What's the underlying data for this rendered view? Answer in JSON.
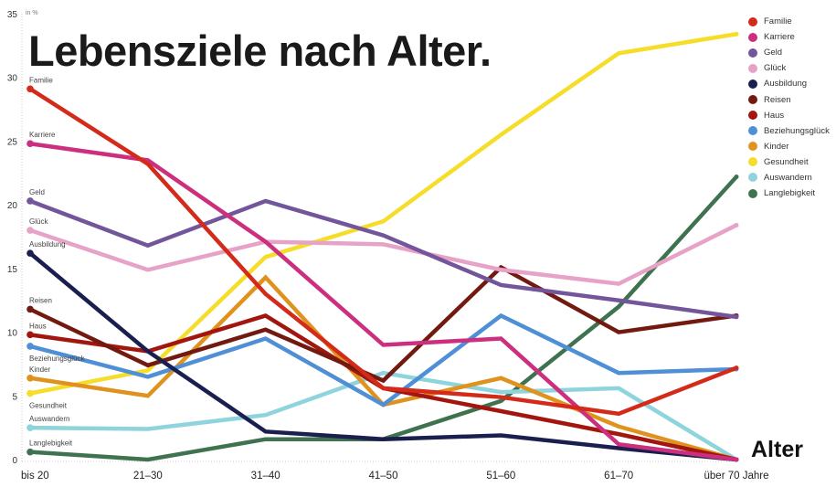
{
  "chart_data": {
    "type": "line",
    "title": "Lebensziele nach Alter.",
    "ylabel": "in %",
    "xlabel": "Alter",
    "ylim": [
      0,
      35
    ],
    "yticks": [
      0,
      5,
      10,
      15,
      20,
      25,
      30,
      35
    ],
    "grid": false,
    "legend": "right",
    "categories": [
      "bis 20",
      "21–30",
      "31–40",
      "41–50",
      "51–60",
      "61–70",
      "über 70 Jahre"
    ],
    "series": [
      {
        "name": "Familie",
        "color": "#d42a1a",
        "values": [
          29.1,
          23.2,
          13.0,
          5.6,
          4.9,
          3.6,
          7.2
        ]
      },
      {
        "name": "Karriere",
        "color": "#cc2f7e",
        "values": [
          24.8,
          23.5,
          17.1,
          9.0,
          9.5,
          1.2,
          0.0
        ]
      },
      {
        "name": "Geld",
        "color": "#72559a",
        "values": [
          20.3,
          16.8,
          20.3,
          17.6,
          13.7,
          12.5,
          11.2
        ]
      },
      {
        "name": "Glück",
        "color": "#e7a3c7",
        "values": [
          18.0,
          14.9,
          17.1,
          16.9,
          14.9,
          13.8,
          18.4
        ]
      },
      {
        "name": "Ausbildung",
        "color": "#1b1f4f",
        "values": [
          16.2,
          8.5,
          2.2,
          1.6,
          1.9,
          0.9,
          0.0
        ]
      },
      {
        "name": "Reisen",
        "color": "#721a10",
        "values": [
          11.8,
          7.4,
          10.2,
          6.2,
          15.1,
          10.0,
          11.3
        ]
      },
      {
        "name": "Haus",
        "color": "#a3150f",
        "values": [
          9.8,
          8.5,
          11.3,
          5.6,
          3.8,
          2.0,
          0.0
        ]
      },
      {
        "name": "Beziehungsglück",
        "color": "#4f8fd6",
        "values": [
          8.9,
          6.5,
          9.5,
          4.3,
          11.3,
          6.8,
          7.1
        ]
      },
      {
        "name": "Kinder",
        "color": "#e0921f",
        "values": [
          6.4,
          5.0,
          14.3,
          4.3,
          6.4,
          2.6,
          0.0
        ]
      },
      {
        "name": "Gesundheit",
        "color": "#f5dd2a",
        "values": [
          5.2,
          7.0,
          15.9,
          18.7,
          25.5,
          31.9,
          33.4
        ]
      },
      {
        "name": "Auswandern",
        "color": "#8dd4dc",
        "values": [
          2.5,
          2.4,
          3.5,
          6.8,
          5.3,
          5.6,
          0.0
        ]
      },
      {
        "name": "Langlebigkeit",
        "color": "#3f7350",
        "values": [
          0.6,
          0.0,
          1.6,
          1.6,
          4.6,
          12.0,
          22.2
        ]
      }
    ]
  }
}
